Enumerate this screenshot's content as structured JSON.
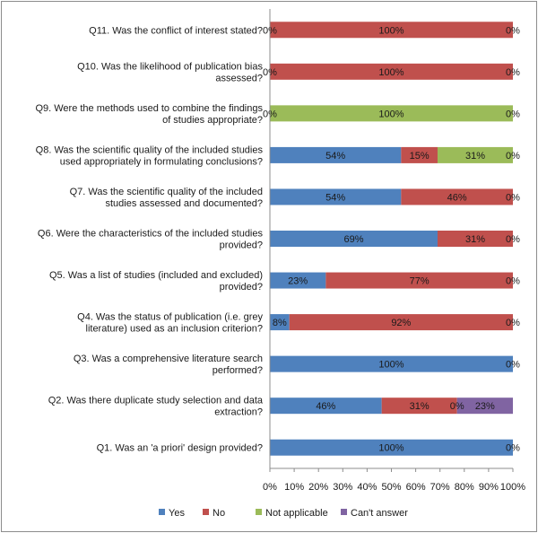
{
  "chart_data": {
    "type": "bar",
    "orientation": "horizontal",
    "stacked": "percent",
    "categories": [
      [
        "Q11. Was the conflict of interest stated?"
      ],
      [
        "Q10. Was the likelihood of publication bias",
        "assessed?"
      ],
      [
        "Q9. Were the methods used to combine the findings",
        "of studies appropriate?"
      ],
      [
        "Q8. Was the scientific quality of the included studies",
        "used appropriately in formulating conclusions?"
      ],
      [
        "Q7. Was the scientific quality of the included",
        "studies assessed and documented?"
      ],
      [
        "Q6. Were the characteristics of the included studies",
        "provided?"
      ],
      [
        "Q5. Was a list of studies (included and excluded)",
        "provided?"
      ],
      [
        "Q4. Was the status of publication (i.e. grey",
        "literature) used as an inclusion criterion?"
      ],
      [
        "Q3. Was a comprehensive literature search",
        "performed?"
      ],
      [
        "Q2. Was there duplicate study selection and data",
        "extraction?"
      ],
      [
        "Q1. Was an 'a priori' design provided?"
      ]
    ],
    "series": [
      {
        "name": "Yes",
        "color": "#4f81bd",
        "values": [
          0,
          0,
          0,
          54,
          54,
          69,
          23,
          8,
          100,
          46,
          100
        ]
      },
      {
        "name": "No",
        "color": "#c0504d",
        "values": [
          100,
          100,
          0,
          15,
          46,
          31,
          77,
          92,
          0,
          31,
          0
        ]
      },
      {
        "name": "Not applicable",
        "color": "#9bbb59",
        "values": [
          0,
          0,
          100,
          31,
          0,
          0,
          0,
          0,
          0,
          0,
          0
        ]
      },
      {
        "name": "Can't answer",
        "color": "#8064a2",
        "values": [
          0,
          0,
          0,
          0,
          0,
          0,
          0,
          0,
          0,
          23,
          0
        ]
      }
    ],
    "data_labels": [
      [
        {
          "t": "0%",
          "at": 0
        },
        {
          "t": "100%",
          "at": 50
        },
        {
          "t": "0%",
          "at": 100
        }
      ],
      [
        {
          "t": "0%",
          "at": 0
        },
        {
          "t": "100%",
          "at": 50
        },
        {
          "t": "0%",
          "at": 100
        }
      ],
      [
        {
          "t": "0%",
          "at": 0
        },
        {
          "t": "100%",
          "at": 50
        },
        {
          "t": "0%",
          "at": 100
        }
      ],
      [
        {
          "t": "54%",
          "at": 27
        },
        {
          "t": "15%",
          "at": 61.5
        },
        {
          "t": "31%",
          "at": 84.5
        },
        {
          "t": "0%",
          "at": 100
        }
      ],
      [
        {
          "t": "54%",
          "at": 27
        },
        {
          "t": "46%",
          "at": 77
        },
        {
          "t": "0%",
          "at": 100
        }
      ],
      [
        {
          "t": "69%",
          "at": 34.5
        },
        {
          "t": "31%",
          "at": 84.5
        },
        {
          "t": "0%",
          "at": 100
        }
      ],
      [
        {
          "t": "23%",
          "at": 11.5
        },
        {
          "t": "77%",
          "at": 61.5
        },
        {
          "t": "0%",
          "at": 100
        }
      ],
      [
        {
          "t": "8%",
          "at": 4
        },
        {
          "t": "92%",
          "at": 54
        },
        {
          "t": "0%",
          "at": 100
        }
      ],
      [
        {
          "t": "100%",
          "at": 50
        },
        {
          "t": "0%",
          "at": 100
        }
      ],
      [
        {
          "t": "46%",
          "at": 23
        },
        {
          "t": "31%",
          "at": 61.5
        },
        {
          "t": "0%",
          "at": 77
        },
        {
          "t": "23%",
          "at": 88.5
        }
      ],
      [
        {
          "t": "100%",
          "at": 50
        },
        {
          "t": "0%",
          "at": 100
        }
      ]
    ],
    "x_ticks": [
      "0%",
      "10%",
      "20%",
      "30%",
      "40%",
      "50%",
      "60%",
      "70%",
      "80%",
      "90%",
      "100%"
    ],
    "xlim": [
      0,
      100
    ],
    "grid": false,
    "legend_position": "bottom",
    "title": "",
    "xlabel": "",
    "ylabel": ""
  }
}
